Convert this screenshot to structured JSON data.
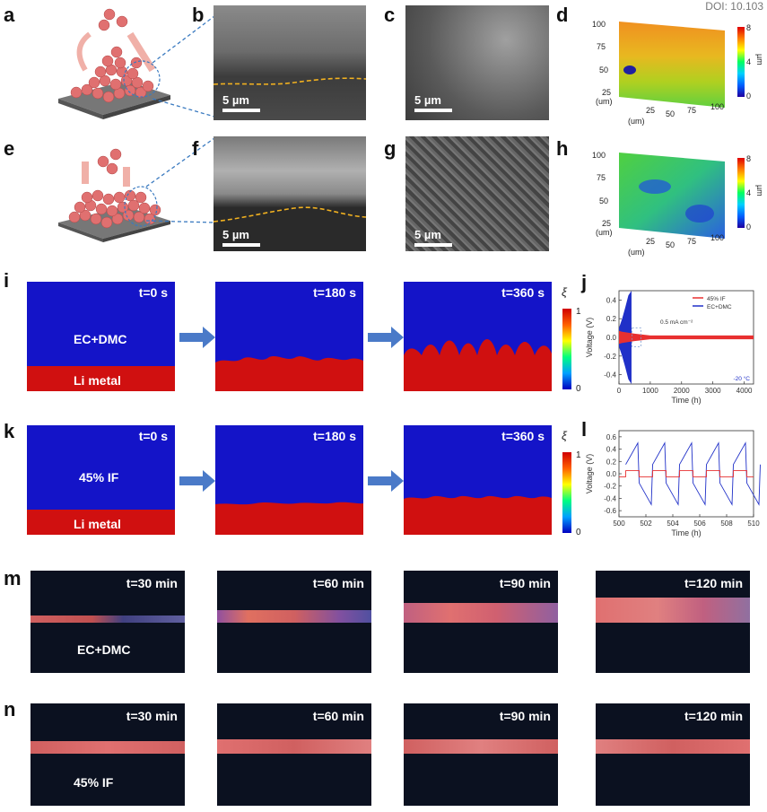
{
  "doi": "DOI: 10.103",
  "panels": {
    "a": "a",
    "b": "b",
    "c": "c",
    "d": "d",
    "e": "e",
    "f": "f",
    "g": "g",
    "h": "h",
    "i": "i",
    "j": "j",
    "k": "k",
    "l": "l",
    "m": "m",
    "n": "n"
  },
  "scalebar": "5 µm",
  "topography": {
    "d": {
      "ticks_y": [
        "100",
        "75",
        "50",
        "25"
      ],
      "unit_y": "(um)",
      "ticks_x": [
        "25",
        "50",
        "75",
        "100"
      ],
      "unit_x": "(um)",
      "cbar": [
        "8",
        "4",
        "0"
      ],
      "cbar_unit": "µm"
    },
    "h": {
      "ticks_y": [
        "100",
        "75",
        "50",
        "25"
      ],
      "unit_y": "(um)",
      "ticks_x": [
        "25",
        "50",
        "75",
        "100"
      ],
      "unit_x": "(um)",
      "cbar": [
        "8",
        "4",
        "0"
      ],
      "cbar_unit": "µm"
    }
  },
  "sim_i": {
    "times": [
      "t=0 s",
      "t=180 s",
      "t=360 s"
    ],
    "electrolyte": "EC+DMC",
    "metal": "Li metal",
    "cbar_top": "1",
    "cbar_bottom": "0",
    "cbar_symbol": "ξ"
  },
  "sim_k": {
    "times": [
      "t=0 s",
      "t=180 s",
      "t=360 s"
    ],
    "electrolyte": "45% IF",
    "metal": "Li metal",
    "cbar_top": "1",
    "cbar_bottom": "0",
    "cbar_symbol": "ξ"
  },
  "photos_m": {
    "times": [
      "t=30 min",
      "t=60 min",
      "t=90 min",
      "t=120 min"
    ],
    "label": "EC+DMC"
  },
  "photos_n": {
    "times": [
      "t=30 min",
      "t=60 min",
      "t=90 min",
      "t=120 min"
    ],
    "label": "45% IF"
  },
  "chart_data": [
    {
      "type": "line",
      "panel": "j",
      "title": "",
      "xlabel": "Time (h)",
      "ylabel": "Voltage (V)",
      "xlim": [
        0,
        4300
      ],
      "ylim": [
        -0.5,
        0.5
      ],
      "xticks": [
        "0",
        "1000",
        "2000",
        "3000",
        "4000"
      ],
      "yticks": [
        "0.4",
        "0.2",
        "0.0",
        "-0.2",
        "-0.4"
      ],
      "annotations": [
        "0.5 mA cm⁻²",
        "-20 °C"
      ],
      "series": [
        {
          "name": "45% IF",
          "color": "#e83030",
          "x": [
            0,
            100,
            500,
            1000,
            2000,
            3000,
            4300
          ],
          "amplitude": [
            0.07,
            0.06,
            0.04,
            0.02,
            0.02,
            0.02,
            0.02
          ]
        },
        {
          "name": "EC+DMC",
          "color": "#2030c8",
          "x": [
            0,
            100,
            200,
            300,
            400
          ],
          "amplitude": [
            0.1,
            0.2,
            0.32,
            0.45,
            0.5
          ]
        }
      ]
    },
    {
      "type": "line",
      "panel": "l",
      "title": "",
      "xlabel": "Time (h)",
      "ylabel": "Voltage (V)",
      "xlim": [
        500,
        510
      ],
      "ylim": [
        -0.7,
        0.7
      ],
      "xticks": [
        "500",
        "502",
        "504",
        "506",
        "508",
        "510"
      ],
      "yticks": [
        "0.6",
        "0.4",
        "0.2",
        "0.0",
        "-0.2",
        "-0.4",
        "-0.6"
      ],
      "series": [
        {
          "name": "45% IF",
          "color": "#e83030",
          "plateau": 0.05
        },
        {
          "name": "EC+DMC",
          "color": "#2030c8",
          "peak": 0.5,
          "start": 0.15
        }
      ]
    }
  ]
}
